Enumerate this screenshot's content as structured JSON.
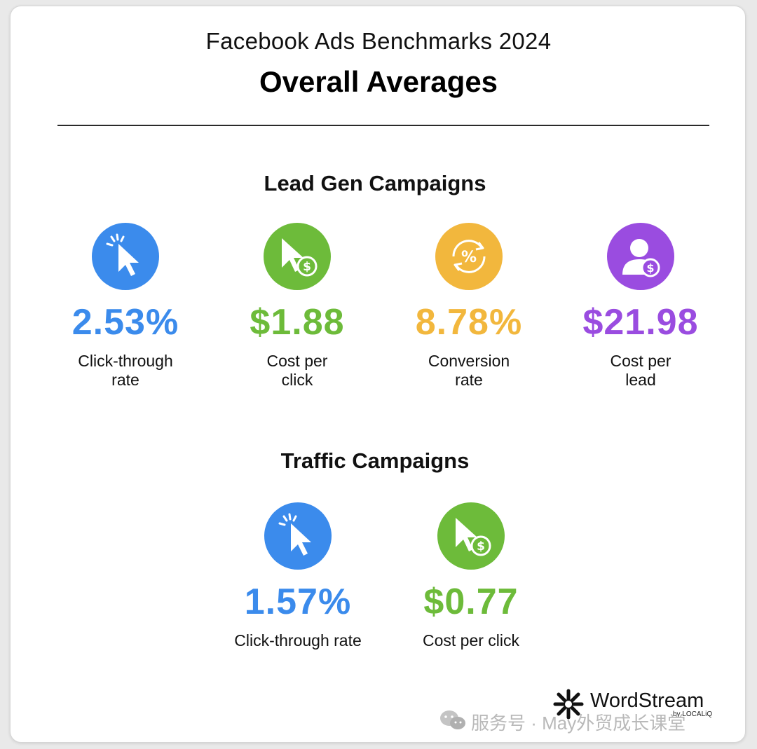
{
  "header": {
    "title": "Facebook Ads Benchmarks 2024",
    "headline": "Overall Averages"
  },
  "lead_gen": {
    "title": "Lead Gen Campaigns",
    "metrics": [
      {
        "value": "2.53%",
        "label_line1": "Click-through",
        "label_line2": "rate",
        "color": "#3b8bec",
        "icon": "cursor-click-icon"
      },
      {
        "value": "$1.88",
        "label_line1": "Cost per",
        "label_line2": "click",
        "color": "#6dbb3a",
        "icon": "cursor-dollar-icon"
      },
      {
        "value": "8.78%",
        "label_line1": "Conversion",
        "label_line2": "rate",
        "color": "#f2b73d",
        "icon": "percent-cycle-icon"
      },
      {
        "value": "$21.98",
        "label_line1": "Cost per",
        "label_line2": "lead",
        "color": "#9a4ce0",
        "icon": "user-dollar-icon"
      }
    ]
  },
  "traffic": {
    "title": "Traffic Campaigns",
    "metrics": [
      {
        "value": "1.57%",
        "label": "Click-through rate",
        "color": "#3b8bec",
        "icon": "cursor-click-icon"
      },
      {
        "value": "$0.77",
        "label": "Cost per click",
        "color": "#6dbb3a",
        "icon": "cursor-dollar-icon"
      }
    ]
  },
  "brand": {
    "name": "WordStream",
    "sub": "by LOCALiQ"
  },
  "watermark": {
    "text": "服务号 · May外贸成长课堂"
  }
}
